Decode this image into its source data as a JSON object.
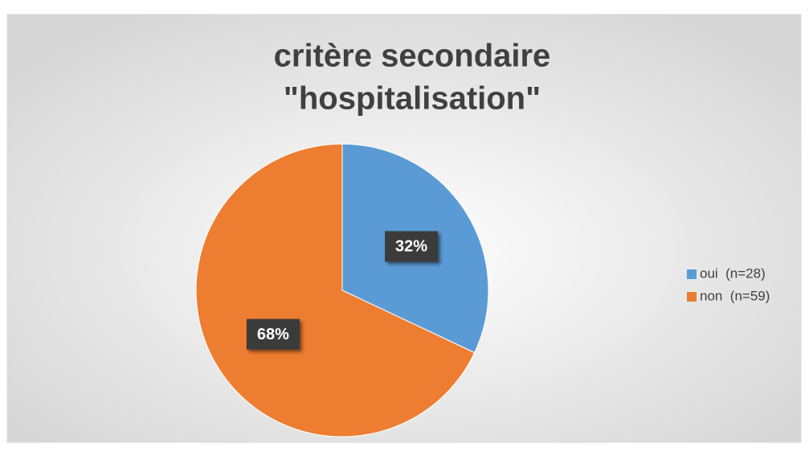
{
  "chart_data": {
    "type": "pie",
    "title": [
      "critère secondaire",
      "\"hospitalisation\""
    ],
    "categories": [
      "oui  (n=28)",
      "non  (n=59)"
    ],
    "values": [
      32,
      68
    ],
    "value_labels": [
      "32%",
      "68%"
    ],
    "colors": [
      "#5b9bd5",
      "#ed7d31"
    ],
    "legend": "right"
  }
}
